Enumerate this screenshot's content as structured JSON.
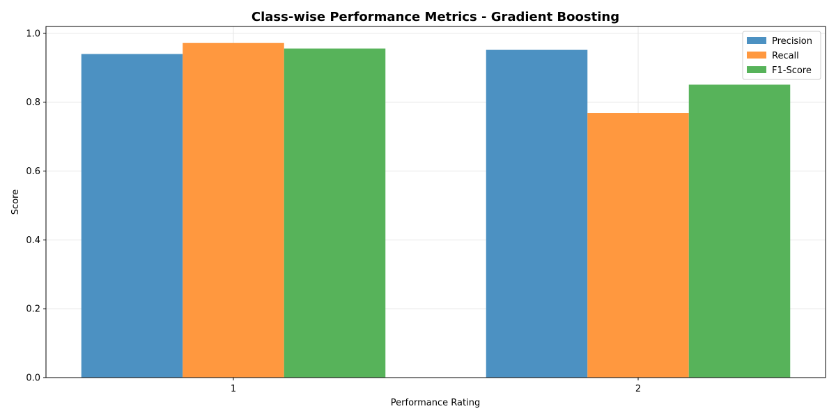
{
  "chart_data": {
    "type": "bar",
    "title": "Class-wise Performance Metrics - Gradient Boosting",
    "xlabel": "Performance Rating",
    "ylabel": "Score",
    "categories": [
      "1",
      "2"
    ],
    "ylim": [
      0,
      1.02
    ],
    "yticks": [
      "0.0",
      "0.2",
      "0.4",
      "0.6",
      "0.8",
      "1.0"
    ],
    "ytick_values": [
      0.0,
      0.2,
      0.4,
      0.6,
      0.8,
      1.0
    ],
    "grid": true,
    "legend_position": "top-right",
    "series": [
      {
        "name": "Precision",
        "values": [
          0.94,
          0.952
        ],
        "color": "#4c91c2"
      },
      {
        "name": "Recall",
        "values": [
          0.972,
          0.769
        ],
        "color": "#ff983f"
      },
      {
        "name": "F1-Score",
        "values": [
          0.956,
          0.851
        ],
        "color": "#57b35a"
      }
    ]
  }
}
